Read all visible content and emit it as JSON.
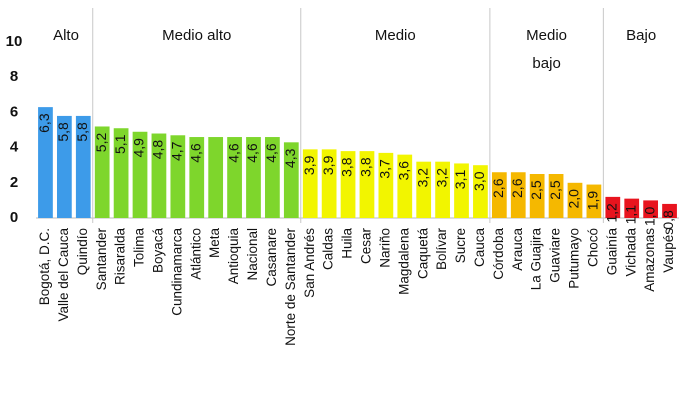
{
  "chart_data": {
    "type": "bar",
    "ylim": [
      0,
      10
    ],
    "yticks": [
      0,
      2,
      4,
      6,
      8,
      10
    ],
    "series": [
      {
        "name": "Alto",
        "color": "#3d9be9",
        "categories": [
          "Bogotá, D.C.",
          "Valle del Cauca",
          "Quindío"
        ],
        "values": [
          6.3,
          5.8,
          5.8
        ],
        "value_labels": [
          "6,3",
          "5,8",
          "5,8"
        ]
      },
      {
        "name": "Medio alto",
        "color": "#7ed62c",
        "categories": [
          "Santander",
          "Risaralda",
          "Tolima",
          "Boyacá",
          "Cundinamarca",
          "Atlántico",
          "Meta",
          "Antioquia",
          "Nacional",
          "Casanare",
          "Norte de Santander"
        ],
        "values": [
          5.2,
          5.1,
          4.9,
          4.8,
          4.7,
          4.6,
          4.6,
          4.6,
          4.6,
          4.6,
          4.3
        ],
        "value_labels": [
          "5,2",
          "5,1",
          "4,9",
          "4,8",
          "4,7",
          "4,6",
          null,
          "4,6",
          "4,6",
          "4,6",
          "4,3"
        ]
      },
      {
        "name": "Medio",
        "color": "#f2f500",
        "categories": [
          "San Andrés",
          "Caldas",
          "Huila",
          "Cesar",
          "Nariño",
          "Magdalena",
          "Caquetá",
          "Bolívar",
          "Sucre",
          "Cauca"
        ],
        "values": [
          3.9,
          3.9,
          3.8,
          3.8,
          3.7,
          3.6,
          3.2,
          3.2,
          3.1,
          3.0
        ],
        "value_labels": [
          "3,9",
          "3,9",
          "3,8",
          "3,8",
          "3,7",
          "3,6",
          "3,2",
          "3,2",
          "3,1",
          "3,0"
        ]
      },
      {
        "name": "Medio bajo",
        "color": "#f5b800",
        "categories": [
          "Córdoba",
          "Arauca",
          "La Guajira",
          "Guaviare",
          "Putumayo",
          "Chocó"
        ],
        "values": [
          2.6,
          2.6,
          2.5,
          2.5,
          2.0,
          1.9
        ],
        "value_labels": [
          "2,6",
          "2,6",
          "2,5",
          "2,5",
          "2,0",
          "1,9"
        ]
      },
      {
        "name": "Bajo",
        "color": "#e8141e",
        "categories": [
          "Guainía",
          "Vichada",
          "Amazonas",
          "Vaupés"
        ],
        "values": [
          1.2,
          1.1,
          1.0,
          0.8
        ],
        "value_labels": [
          "1,2",
          "1,1",
          "1,0",
          "0,8"
        ]
      }
    ]
  }
}
